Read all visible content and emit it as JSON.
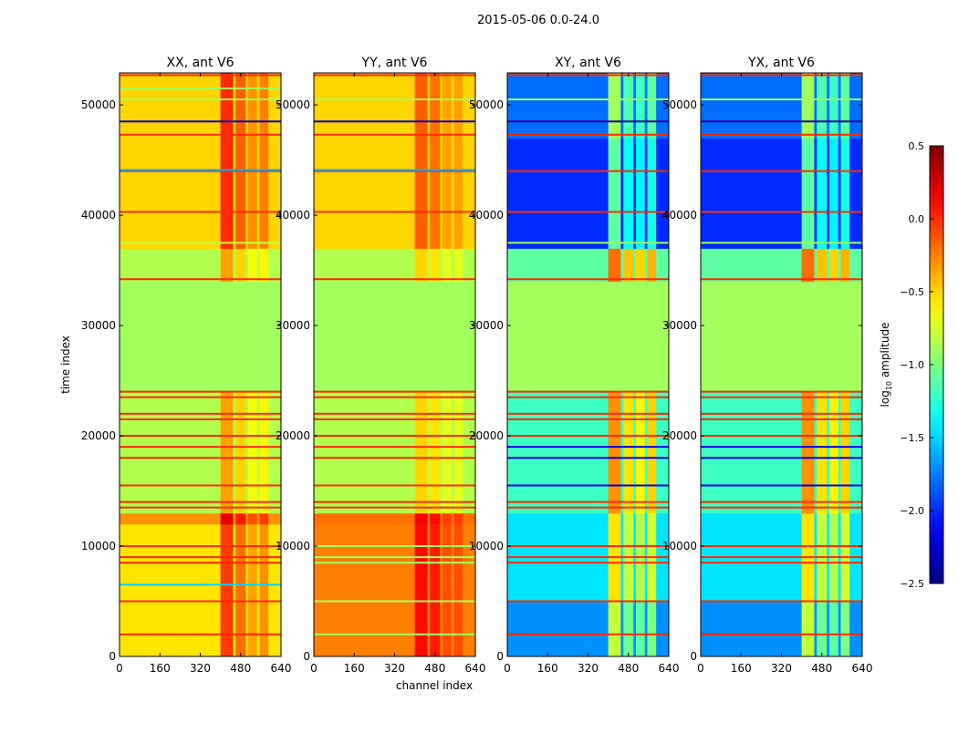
{
  "chart_data": {
    "type": "heatmap",
    "title": "2015-05-06 0.0-24.0",
    "xlabel": "channel index",
    "ylabel": "time index",
    "xlim": [
      0,
      640
    ],
    "ylim": [
      0,
      52900
    ],
    "xticks": [
      0,
      160,
      320,
      480,
      640
    ],
    "yticks": [
      0,
      10000,
      20000,
      30000,
      40000,
      50000
    ],
    "colorbar": {
      "label_main": "log",
      "label_sub": "10",
      "label_rest": " amplitude",
      "range": [
        -2.5,
        0.5
      ],
      "ticks": [
        "0.5",
        "0.0",
        "−0.5",
        "−1.0",
        "−1.5",
        "−2.0",
        "−2.5"
      ],
      "tick_values": [
        0.5,
        0,
        -0.5,
        -1,
        -1.5,
        -2,
        -2.5
      ],
      "colormap": "jet"
    },
    "panels": [
      {
        "title": "XX, ant V6",
        "bands": [
          [
            0,
            12000,
            -0.55,
            true
          ],
          [
            12000,
            13000,
            -0.3,
            true
          ],
          [
            13000,
            24000,
            -0.85,
            true
          ],
          [
            24000,
            34000,
            -0.9,
            false
          ],
          [
            34000,
            37000,
            -0.85,
            true
          ],
          [
            37000,
            52900,
            -0.5,
            true
          ]
        ],
        "columns": [
          [
            400,
            450,
            0.5
          ],
          [
            460,
            500,
            0.35
          ],
          [
            510,
            545,
            0.2
          ],
          [
            555,
            590,
            0.25
          ]
        ],
        "lines": [
          [
            2000,
            0
          ],
          [
            5000,
            0
          ],
          [
            6500,
            -1.5
          ],
          [
            8500,
            0
          ],
          [
            9000,
            0
          ],
          [
            10000,
            0
          ],
          [
            13500,
            0
          ],
          [
            14000,
            0
          ],
          [
            15500,
            0
          ],
          [
            18000,
            0
          ],
          [
            19000,
            0
          ],
          [
            20000,
            0
          ],
          [
            21500,
            0
          ],
          [
            22000,
            0
          ],
          [
            23500,
            0
          ],
          [
            24000,
            0
          ],
          [
            34200,
            0
          ],
          [
            37500,
            -0.8
          ],
          [
            40300,
            0
          ],
          [
            44000,
            0
          ],
          [
            44100,
            -1.6
          ],
          [
            47300,
            0
          ],
          [
            48500,
            -2.3
          ],
          [
            50500,
            -0.9
          ],
          [
            51500,
            -0.9
          ],
          [
            52700,
            0
          ]
        ]
      },
      {
        "title": "YY, ant V6",
        "bands": [
          [
            0,
            12000,
            -0.25,
            true
          ],
          [
            12000,
            13000,
            -0.2,
            true
          ],
          [
            13000,
            24000,
            -0.85,
            true
          ],
          [
            24000,
            34000,
            -0.9,
            false
          ],
          [
            34000,
            37000,
            -0.85,
            true
          ],
          [
            37000,
            52900,
            -0.5,
            true
          ]
        ],
        "columns": [
          [
            400,
            450,
            0.35
          ],
          [
            460,
            500,
            0.3
          ],
          [
            510,
            545,
            0.15
          ],
          [
            555,
            590,
            0.15
          ]
        ],
        "lines": [
          [
            2000,
            -0.9
          ],
          [
            5000,
            -0.9
          ],
          [
            8500,
            -0.9
          ],
          [
            9000,
            -0.9
          ],
          [
            10000,
            -0.9
          ],
          [
            13500,
            0
          ],
          [
            14000,
            0
          ],
          [
            15500,
            0
          ],
          [
            18000,
            0
          ],
          [
            19000,
            0
          ],
          [
            20000,
            0
          ],
          [
            21500,
            0
          ],
          [
            22000,
            0
          ],
          [
            23500,
            0
          ],
          [
            24000,
            0
          ],
          [
            34200,
            0
          ],
          [
            40300,
            0
          ],
          [
            44000,
            0
          ],
          [
            44100,
            -1.6
          ],
          [
            47300,
            0
          ],
          [
            48500,
            -2.3
          ],
          [
            50500,
            -0.9
          ],
          [
            52700,
            0
          ]
        ]
      },
      {
        "title": "XY, ant V6",
        "bands": [
          [
            0,
            5000,
            -1.7,
            true
          ],
          [
            5000,
            13000,
            -1.45,
            true
          ],
          [
            13000,
            24000,
            -1.2,
            true
          ],
          [
            24000,
            34000,
            -0.9,
            false
          ],
          [
            34000,
            37000,
            -1.1,
            true
          ],
          [
            37000,
            47000,
            -2.0,
            true
          ],
          [
            47000,
            52900,
            -1.8,
            true
          ]
        ],
        "columns": [
          [
            400,
            450,
            0.9
          ],
          [
            460,
            500,
            0.65
          ],
          [
            510,
            545,
            0.6
          ],
          [
            555,
            590,
            0.7
          ]
        ],
        "lines": [
          [
            2000,
            0
          ],
          [
            5000,
            0
          ],
          [
            8500,
            0
          ],
          [
            9000,
            0
          ],
          [
            10000,
            0
          ],
          [
            13500,
            0
          ],
          [
            14000,
            0
          ],
          [
            15500,
            -2.2
          ],
          [
            18000,
            -2.2
          ],
          [
            19000,
            -2.2
          ],
          [
            20000,
            0
          ],
          [
            21500,
            0
          ],
          [
            22000,
            0
          ],
          [
            23500,
            0
          ],
          [
            24000,
            0
          ],
          [
            34200,
            0
          ],
          [
            37500,
            -0.9
          ],
          [
            40300,
            0
          ],
          [
            44000,
            0
          ],
          [
            47300,
            0
          ],
          [
            48500,
            -2.4
          ],
          [
            50500,
            -0.9
          ],
          [
            52700,
            0
          ]
        ]
      },
      {
        "title": "YX, ant V6",
        "bands": [
          [
            0,
            5000,
            -1.7,
            true
          ],
          [
            5000,
            13000,
            -1.45,
            true
          ],
          [
            13000,
            24000,
            -1.2,
            true
          ],
          [
            24000,
            34000,
            -0.9,
            false
          ],
          [
            34000,
            37000,
            -1.1,
            true
          ],
          [
            37000,
            47000,
            -2.0,
            true
          ],
          [
            47000,
            52900,
            -1.8,
            true
          ]
        ],
        "columns": [
          [
            400,
            450,
            0.9
          ],
          [
            460,
            500,
            0.65
          ],
          [
            510,
            545,
            0.6
          ],
          [
            555,
            590,
            0.7
          ]
        ],
        "lines": [
          [
            2000,
            0
          ],
          [
            5000,
            0
          ],
          [
            8500,
            0
          ],
          [
            9000,
            0
          ],
          [
            10000,
            0
          ],
          [
            13500,
            0
          ],
          [
            14000,
            0
          ],
          [
            15500,
            -2.2
          ],
          [
            18000,
            -2.2
          ],
          [
            19000,
            -2.2
          ],
          [
            20000,
            0
          ],
          [
            21500,
            0
          ],
          [
            22000,
            0
          ],
          [
            23500,
            0
          ],
          [
            24000,
            0
          ],
          [
            34200,
            0
          ],
          [
            37500,
            -0.9
          ],
          [
            40300,
            0
          ],
          [
            44000,
            0
          ],
          [
            47300,
            0
          ],
          [
            48500,
            -2.4
          ],
          [
            50500,
            -0.9
          ],
          [
            52700,
            0
          ]
        ]
      }
    ]
  }
}
